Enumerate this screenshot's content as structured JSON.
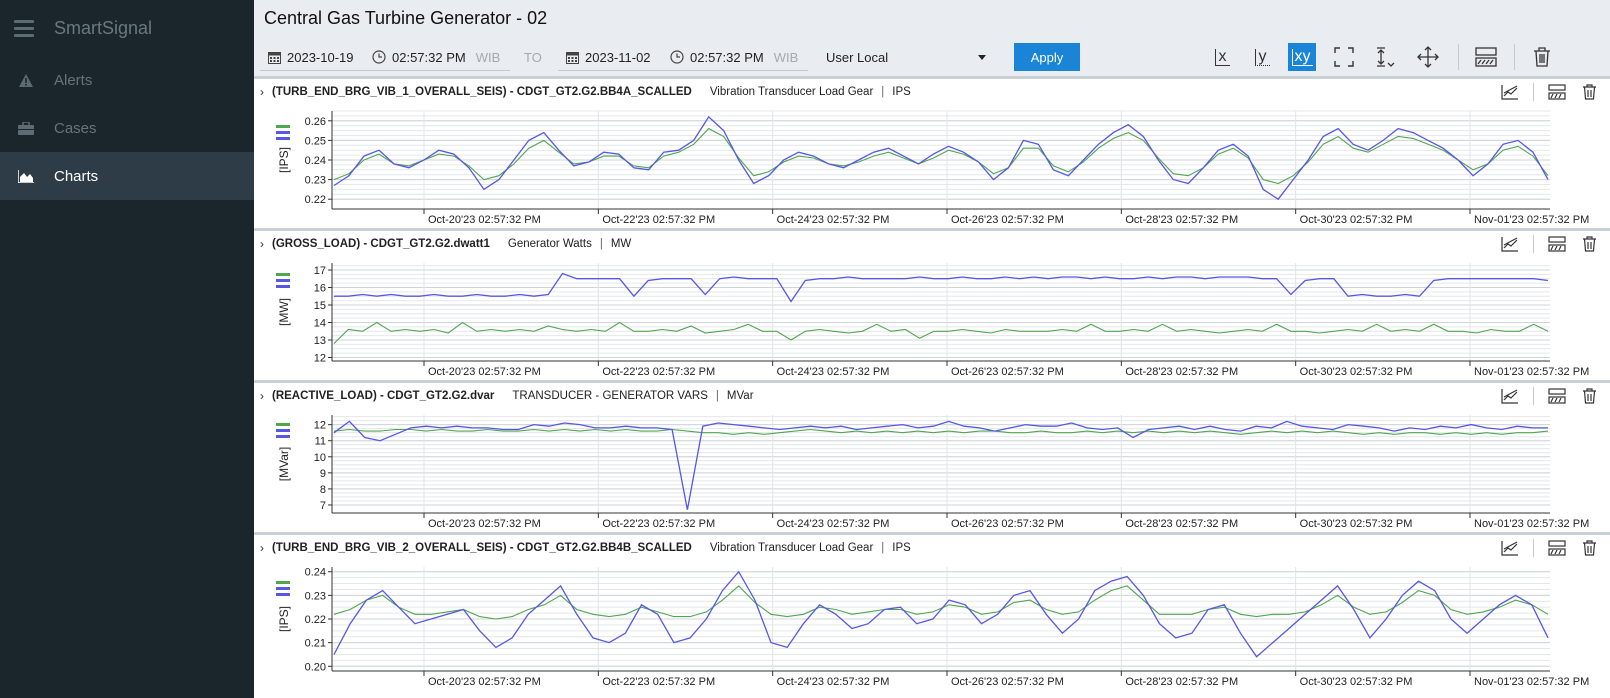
{
  "sidebar": {
    "brand": "SmartSignal",
    "items": [
      {
        "label": "Alerts",
        "icon": "alert-icon"
      },
      {
        "label": "Cases",
        "icon": "briefcase-icon"
      },
      {
        "label": "Charts",
        "icon": "area-chart-icon",
        "active": true
      }
    ]
  },
  "page_title": "Central Gas Turbine Generator - 02",
  "toolbar": {
    "start_date": "2023-10-19",
    "start_time": "02:57:32 PM",
    "start_tz": "WIB",
    "to_label": "TO",
    "end_date": "2023-11-02",
    "end_time": "02:57:32 PM",
    "end_tz": "WIB",
    "timezone_option": "User Local",
    "apply_label": "Apply",
    "zoom_x": "x",
    "zoom_y": "y",
    "zoom_xy": "xy"
  },
  "colors": {
    "actual": "#5757e6",
    "estimate": "#4fa64f",
    "accent": "#1a84d6"
  },
  "x_tick_labels": [
    "Oct-20'23 02:57:32 PM",
    "Oct-22'23 02:57:32 PM",
    "Oct-24'23 02:57:32 PM",
    "Oct-26'23 02:57:32 PM",
    "Oct-28'23 02:57:32 PM",
    "Oct-30'23 02:57:32 PM",
    "Nov-01'23 02:57:32 PM"
  ],
  "chart_data": [
    {
      "type": "line",
      "tag": "(TURB_END_BRG_VIB_1_OVERALL_SEIS) - CDGT_GT2.G2.BB4A_SCALLED",
      "description": "Vibration Transducer Load Gear",
      "unit": "IPS",
      "ylabel": "[IPS]",
      "yticks": [
        "0.26",
        "0.25",
        "0.24",
        "0.23",
        "0.22"
      ],
      "ylim": [
        0.215,
        0.265
      ],
      "series": [
        {
          "values": [
            0.227,
            0.232,
            0.242,
            0.245,
            0.238,
            0.236,
            0.24,
            0.245,
            0.243,
            0.236,
            0.225,
            0.23,
            0.24,
            0.25,
            0.254,
            0.245,
            0.237,
            0.239,
            0.244,
            0.243,
            0.236,
            0.235,
            0.244,
            0.245,
            0.25,
            0.262,
            0.255,
            0.24,
            0.228,
            0.232,
            0.24,
            0.244,
            0.242,
            0.238,
            0.236,
            0.24,
            0.244,
            0.246,
            0.242,
            0.238,
            0.243,
            0.247,
            0.244,
            0.239,
            0.23,
            0.236,
            0.25,
            0.248,
            0.235,
            0.232,
            0.24,
            0.248,
            0.254,
            0.258,
            0.252,
            0.24,
            0.23,
            0.228,
            0.236,
            0.245,
            0.248,
            0.242,
            0.225,
            0.22,
            0.23,
            0.24,
            0.252,
            0.256,
            0.248,
            0.245,
            0.25,
            0.256,
            0.254,
            0.25,
            0.246,
            0.24,
            0.232,
            0.238,
            0.248,
            0.25,
            0.244,
            0.23
          ]
        },
        {
          "values": [
            0.23,
            0.233,
            0.24,
            0.243,
            0.238,
            0.237,
            0.24,
            0.243,
            0.242,
            0.237,
            0.23,
            0.232,
            0.238,
            0.246,
            0.25,
            0.244,
            0.238,
            0.239,
            0.242,
            0.242,
            0.237,
            0.236,
            0.242,
            0.244,
            0.248,
            0.256,
            0.252,
            0.241,
            0.232,
            0.234,
            0.239,
            0.242,
            0.241,
            0.238,
            0.237,
            0.239,
            0.242,
            0.244,
            0.241,
            0.238,
            0.241,
            0.245,
            0.243,
            0.239,
            0.233,
            0.236,
            0.246,
            0.246,
            0.237,
            0.234,
            0.239,
            0.246,
            0.251,
            0.254,
            0.25,
            0.241,
            0.233,
            0.232,
            0.236,
            0.243,
            0.246,
            0.241,
            0.23,
            0.228,
            0.232,
            0.239,
            0.248,
            0.252,
            0.246,
            0.244,
            0.248,
            0.252,
            0.251,
            0.248,
            0.245,
            0.24,
            0.235,
            0.238,
            0.245,
            0.247,
            0.242,
            0.232
          ]
        }
      ]
    },
    {
      "type": "line",
      "tag": "(GROSS_LOAD) - CDGT_GT2.G2.dwatt1",
      "description": "Generator Watts",
      "unit": "MW",
      "ylabel": "[MW]",
      "yticks": [
        "17",
        "16",
        "15",
        "14",
        "13",
        "12"
      ],
      "ylim": [
        11.8,
        17.4
      ],
      "series": [
        {
          "values": [
            15.5,
            15.5,
            15.6,
            15.5,
            15.6,
            15.5,
            15.5,
            15.6,
            15.5,
            15.5,
            15.6,
            15.5,
            15.5,
            15.6,
            15.5,
            15.6,
            16.8,
            16.5,
            16.5,
            16.5,
            16.5,
            15.5,
            16.4,
            16.5,
            16.5,
            16.5,
            15.6,
            16.5,
            16.6,
            16.5,
            16.5,
            16.5,
            15.2,
            16.4,
            16.5,
            16.5,
            16.6,
            16.5,
            16.5,
            16.5,
            16.5,
            16.6,
            16.5,
            16.5,
            16.6,
            16.5,
            16.5,
            16.6,
            16.5,
            16.6,
            16.5,
            16.6,
            16.6,
            16.5,
            16.6,
            16.5,
            16.5,
            16.6,
            16.5,
            16.6,
            16.6,
            16.5,
            16.6,
            16.6,
            16.6,
            16.5,
            16.5,
            15.6,
            16.4,
            16.5,
            16.5,
            15.5,
            15.6,
            15.5,
            15.5,
            15.6,
            15.5,
            16.4,
            16.5,
            16.5,
            16.5,
            16.5,
            16.5,
            16.5,
            16.5,
            16.4
          ]
        },
        {
          "values": [
            12.8,
            13.6,
            13.5,
            14.0,
            13.5,
            13.6,
            13.5,
            13.6,
            13.4,
            14.0,
            13.5,
            13.6,
            13.5,
            13.6,
            13.5,
            13.8,
            13.6,
            13.5,
            13.6,
            13.5,
            14.0,
            13.5,
            13.5,
            13.6,
            13.5,
            13.8,
            13.4,
            13.5,
            13.6,
            13.9,
            13.5,
            13.5,
            13.0,
            13.5,
            13.6,
            13.5,
            13.4,
            13.5,
            13.9,
            13.5,
            13.6,
            13.1,
            13.5,
            13.5,
            13.6,
            13.5,
            13.4,
            13.6,
            13.5,
            13.5,
            13.5,
            13.6,
            13.5,
            13.9,
            13.5,
            13.5,
            13.6,
            13.5,
            13.9,
            13.5,
            13.6,
            13.5,
            13.4,
            13.5,
            13.6,
            13.5,
            13.9,
            13.5,
            13.5,
            13.4,
            13.5,
            13.6,
            13.5,
            13.9,
            13.5,
            13.6,
            13.5,
            13.9,
            13.5,
            13.5,
            13.4,
            13.6,
            13.5,
            13.5,
            13.9,
            13.5
          ]
        }
      ]
    },
    {
      "type": "line",
      "tag": "(REACTIVE_LOAD) - CDGT_GT2.G2.dvar",
      "description": "TRANSDUCER - GENERATOR VARS",
      "unit": "MVar",
      "ylabel": "[MVar]",
      "yticks": [
        "12",
        "11",
        "10",
        "9",
        "8",
        "7"
      ],
      "ylim": [
        6.5,
        12.6
      ],
      "series": [
        {
          "values": [
            11.5,
            12.2,
            11.2,
            11.0,
            11.4,
            11.8,
            11.9,
            11.8,
            11.9,
            11.8,
            11.8,
            11.7,
            11.7,
            12.0,
            11.9,
            12.1,
            12.0,
            11.8,
            11.8,
            11.9,
            11.8,
            11.8,
            11.7,
            6.7,
            11.9,
            12.1,
            12.0,
            11.9,
            11.8,
            11.7,
            11.8,
            11.9,
            11.8,
            11.9,
            11.7,
            11.8,
            11.9,
            12.0,
            11.8,
            11.9,
            12.2,
            11.9,
            11.8,
            11.6,
            11.8,
            12.0,
            11.9,
            11.9,
            12.1,
            11.8,
            11.7,
            11.8,
            11.2,
            11.7,
            11.8,
            11.9,
            11.7,
            11.9,
            11.7,
            11.6,
            11.9,
            11.8,
            12.2,
            11.9,
            11.8,
            11.7,
            12.0,
            11.9,
            11.8,
            11.6,
            11.8,
            11.7,
            11.9,
            11.8,
            12.0,
            11.8,
            11.7,
            11.9,
            11.8,
            11.8
          ]
        },
        {
          "values": [
            11.6,
            11.7,
            11.6,
            11.6,
            11.7,
            11.7,
            11.6,
            11.7,
            11.6,
            11.6,
            11.7,
            11.6,
            11.6,
            11.7,
            11.6,
            11.7,
            11.6,
            11.7,
            11.6,
            11.7,
            11.6,
            11.6,
            11.7,
            11.6,
            11.5,
            11.5,
            11.4,
            11.5,
            11.4,
            11.5,
            11.6,
            11.7,
            11.6,
            11.5,
            11.6,
            11.5,
            11.6,
            11.5,
            11.6,
            11.5,
            11.6,
            11.5,
            11.6,
            11.6,
            11.5,
            11.5,
            11.6,
            11.5,
            11.5,
            11.6,
            11.5,
            11.6,
            11.5,
            11.6,
            11.5,
            11.6,
            11.5,
            11.6,
            11.5,
            11.4,
            11.5,
            11.6,
            11.5,
            11.6,
            11.5,
            11.6,
            11.5,
            11.4,
            11.5,
            11.4,
            11.5,
            11.5,
            11.4,
            11.5,
            11.4,
            11.5,
            11.4,
            11.5,
            11.5,
            11.6
          ]
        }
      ]
    },
    {
      "type": "line",
      "tag": "(TURB_END_BRG_VIB_2_OVERALL_SEIS) - CDGT_GT2.G2.BB4B_SCALLED",
      "description": "Vibration Transducer Load Gear",
      "unit": "IPS",
      "ylabel": "[IPS]",
      "yticks": [
        "0.24",
        "0.23",
        "0.22",
        "0.21",
        "0.20"
      ],
      "ylim": [
        0.198,
        0.242
      ],
      "series": [
        {
          "values": [
            0.205,
            0.218,
            0.228,
            0.232,
            0.225,
            0.218,
            0.22,
            0.222,
            0.224,
            0.215,
            0.208,
            0.212,
            0.222,
            0.228,
            0.234,
            0.222,
            0.212,
            0.21,
            0.214,
            0.226,
            0.222,
            0.21,
            0.212,
            0.22,
            0.232,
            0.24,
            0.228,
            0.21,
            0.208,
            0.218,
            0.226,
            0.222,
            0.216,
            0.218,
            0.224,
            0.225,
            0.218,
            0.22,
            0.228,
            0.226,
            0.218,
            0.222,
            0.23,
            0.232,
            0.222,
            0.214,
            0.22,
            0.232,
            0.236,
            0.238,
            0.23,
            0.218,
            0.212,
            0.214,
            0.224,
            0.226,
            0.214,
            0.204,
            0.21,
            0.216,
            0.222,
            0.228,
            0.234,
            0.224,
            0.212,
            0.22,
            0.23,
            0.236,
            0.232,
            0.22,
            0.214,
            0.22,
            0.226,
            0.23,
            0.226,
            0.212
          ]
        },
        {
          "values": [
            0.222,
            0.224,
            0.228,
            0.23,
            0.225,
            0.222,
            0.222,
            0.223,
            0.224,
            0.221,
            0.22,
            0.221,
            0.224,
            0.226,
            0.23,
            0.224,
            0.222,
            0.221,
            0.222,
            0.225,
            0.223,
            0.221,
            0.221,
            0.223,
            0.228,
            0.234,
            0.227,
            0.222,
            0.221,
            0.222,
            0.225,
            0.224,
            0.222,
            0.223,
            0.224,
            0.224,
            0.222,
            0.223,
            0.226,
            0.225,
            0.222,
            0.223,
            0.227,
            0.228,
            0.224,
            0.222,
            0.223,
            0.228,
            0.232,
            0.234,
            0.228,
            0.222,
            0.222,
            0.222,
            0.224,
            0.225,
            0.222,
            0.221,
            0.222,
            0.222,
            0.223,
            0.226,
            0.23,
            0.225,
            0.222,
            0.223,
            0.227,
            0.232,
            0.23,
            0.224,
            0.222,
            0.223,
            0.225,
            0.228,
            0.226,
            0.222
          ]
        }
      ]
    }
  ]
}
